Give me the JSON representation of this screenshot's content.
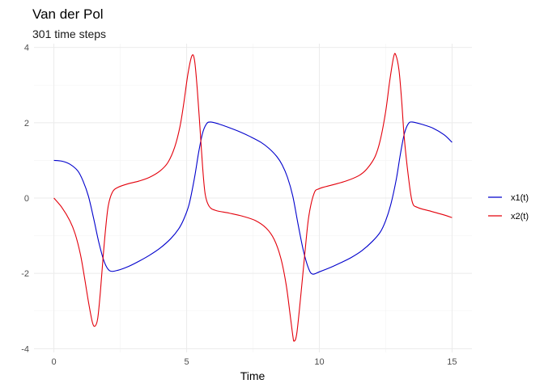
{
  "chart_data": {
    "type": "line",
    "title": "Van der Pol",
    "subtitle": "301 time steps",
    "xlabel": "Time",
    "ylabel": "",
    "xlim": [
      -0.75,
      15.75
    ],
    "ylim": [
      -4.1,
      4.1
    ],
    "x_ticks": [
      0,
      5,
      10,
      15
    ],
    "y_ticks": [
      -4,
      -2,
      0,
      2,
      4
    ],
    "grid": true,
    "legend_position": "right",
    "series": [
      {
        "name": "x1(t)",
        "color": "#0000cc",
        "points": [
          [
            0,
            1.0
          ],
          [
            0.3,
            0.98
          ],
          [
            0.6,
            0.9
          ],
          [
            0.9,
            0.72
          ],
          [
            1.1,
            0.45
          ],
          [
            1.3,
            0.05
          ],
          [
            1.5,
            -0.55
          ],
          [
            1.7,
            -1.2
          ],
          [
            1.9,
            -1.7
          ],
          [
            2.1,
            -1.93
          ],
          [
            2.4,
            -1.92
          ],
          [
            2.8,
            -1.82
          ],
          [
            3.2,
            -1.68
          ],
          [
            3.6,
            -1.52
          ],
          [
            4.0,
            -1.33
          ],
          [
            4.4,
            -1.08
          ],
          [
            4.7,
            -0.82
          ],
          [
            4.9,
            -0.55
          ],
          [
            5.1,
            -0.15
          ],
          [
            5.3,
            0.55
          ],
          [
            5.45,
            1.2
          ],
          [
            5.6,
            1.72
          ],
          [
            5.75,
            1.97
          ],
          [
            5.9,
            2.02
          ],
          [
            6.2,
            1.97
          ],
          [
            6.6,
            1.87
          ],
          [
            7.0,
            1.76
          ],
          [
            7.4,
            1.63
          ],
          [
            7.8,
            1.48
          ],
          [
            8.1,
            1.32
          ],
          [
            8.4,
            1.1
          ],
          [
            8.6,
            0.88
          ],
          [
            8.8,
            0.55
          ],
          [
            9.0,
            0.05
          ],
          [
            9.2,
            -0.7
          ],
          [
            9.4,
            -1.4
          ],
          [
            9.6,
            -1.88
          ],
          [
            9.75,
            -2.02
          ],
          [
            10.0,
            -1.96
          ],
          [
            10.4,
            -1.85
          ],
          [
            10.8,
            -1.72
          ],
          [
            11.2,
            -1.58
          ],
          [
            11.6,
            -1.4
          ],
          [
            12.0,
            -1.15
          ],
          [
            12.3,
            -0.9
          ],
          [
            12.5,
            -0.6
          ],
          [
            12.7,
            -0.15
          ],
          [
            12.9,
            0.5
          ],
          [
            13.05,
            1.15
          ],
          [
            13.2,
            1.7
          ],
          [
            13.35,
            1.97
          ],
          [
            13.5,
            2.02
          ],
          [
            13.9,
            1.95
          ],
          [
            14.3,
            1.85
          ],
          [
            14.7,
            1.68
          ],
          [
            15.0,
            1.48
          ]
        ]
      },
      {
        "name": "x2(t)",
        "color": "#e3000b",
        "points": [
          [
            0,
            0.0
          ],
          [
            0.3,
            -0.25
          ],
          [
            0.6,
            -0.6
          ],
          [
            0.8,
            -0.95
          ],
          [
            1.0,
            -1.5
          ],
          [
            1.15,
            -2.1
          ],
          [
            1.3,
            -2.75
          ],
          [
            1.45,
            -3.3
          ],
          [
            1.55,
            -3.4
          ],
          [
            1.65,
            -3.2
          ],
          [
            1.75,
            -2.5
          ],
          [
            1.85,
            -1.6
          ],
          [
            1.95,
            -0.8
          ],
          [
            2.05,
            -0.2
          ],
          [
            2.2,
            0.15
          ],
          [
            2.4,
            0.28
          ],
          [
            2.8,
            0.38
          ],
          [
            3.2,
            0.45
          ],
          [
            3.6,
            0.55
          ],
          [
            4.0,
            0.72
          ],
          [
            4.3,
            0.95
          ],
          [
            4.55,
            1.35
          ],
          [
            4.75,
            1.9
          ],
          [
            4.9,
            2.55
          ],
          [
            5.05,
            3.3
          ],
          [
            5.2,
            3.78
          ],
          [
            5.3,
            3.65
          ],
          [
            5.4,
            2.9
          ],
          [
            5.5,
            1.9
          ],
          [
            5.6,
            0.85
          ],
          [
            5.7,
            0.1
          ],
          [
            5.85,
            -0.22
          ],
          [
            6.1,
            -0.33
          ],
          [
            6.6,
            -0.4
          ],
          [
            7.1,
            -0.48
          ],
          [
            7.6,
            -0.6
          ],
          [
            8.0,
            -0.8
          ],
          [
            8.3,
            -1.1
          ],
          [
            8.55,
            -1.6
          ],
          [
            8.75,
            -2.3
          ],
          [
            8.9,
            -3.1
          ],
          [
            9.0,
            -3.65
          ],
          [
            9.05,
            -3.8
          ],
          [
            9.15,
            -3.6
          ],
          [
            9.3,
            -2.6
          ],
          [
            9.45,
            -1.5
          ],
          [
            9.6,
            -0.5
          ],
          [
            9.8,
            0.12
          ],
          [
            10.0,
            0.25
          ],
          [
            10.5,
            0.35
          ],
          [
            11.0,
            0.45
          ],
          [
            11.5,
            0.6
          ],
          [
            11.8,
            0.78
          ],
          [
            12.1,
            1.1
          ],
          [
            12.3,
            1.55
          ],
          [
            12.5,
            2.3
          ],
          [
            12.65,
            3.1
          ],
          [
            12.8,
            3.75
          ],
          [
            12.88,
            3.8
          ],
          [
            13.0,
            3.4
          ],
          [
            13.1,
            2.6
          ],
          [
            13.2,
            1.6
          ],
          [
            13.35,
            0.6
          ],
          [
            13.5,
            -0.1
          ],
          [
            13.7,
            -0.25
          ],
          [
            14.2,
            -0.35
          ],
          [
            14.7,
            -0.45
          ],
          [
            15.0,
            -0.52
          ]
        ]
      }
    ]
  }
}
